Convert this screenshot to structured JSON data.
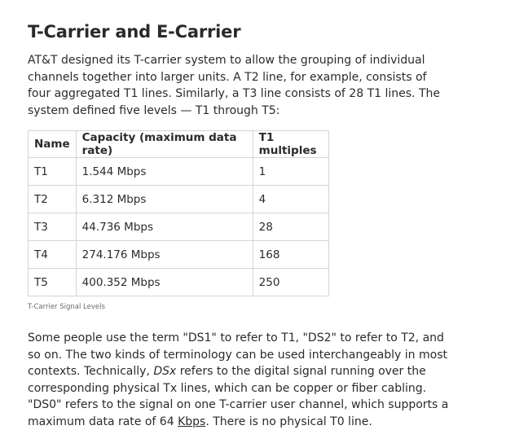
{
  "article": {
    "title": "T-Carrier and E-Carrier",
    "intro": "AT&T designed its T-carrier system to allow the grouping of individual channels together into larger units. A T2 line, for example, consists of four aggregated T1 lines. Similarly, a T3 line consists of 28 T1 lines. The system defined five levels — T1 through T5:",
    "table": {
      "headers": [
        "Name",
        "Capacity (maximum data rate)",
        "T1 multiples"
      ],
      "rows": [
        [
          "T1",
          "1.544 Mbps",
          "1"
        ],
        [
          "T2",
          "6.312 Mbps",
          "4"
        ],
        [
          "T3",
          "44.736 Mbps",
          "28"
        ],
        [
          "T4",
          "274.176 Mbps",
          "168"
        ],
        [
          "T5",
          "400.352 Mbps",
          "250"
        ]
      ],
      "caption": "T-Carrier Signal Levels"
    },
    "outro": {
      "part1": "Some people use the term \"DS1\" to refer to T1, \"DS2\" to refer to T2, and so on. The two kinds of terminology can be used interchangeably in most contexts. Technically, ",
      "emphasis": "DSx",
      "part2": " refers to the digital signal running over the corresponding physical Tx lines, which can be copper or fiber cabling. \"DS0\" refers to the signal on one T-carrier user channel, which supports a maximum data rate of 64 ",
      "link": "Kbps",
      "part3": ". There is no physical T0 line."
    }
  }
}
